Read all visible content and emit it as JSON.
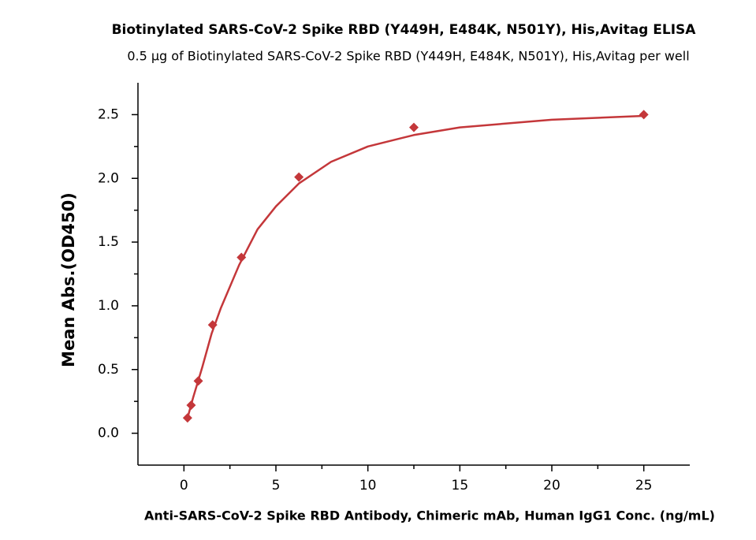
{
  "chart_data": {
    "type": "scatter",
    "title": "Biotinylated SARS-CoV-2 Spike RBD (Y449H, E484K, N501Y), His,Avitag ELISA",
    "subtitle": "0.5 μg of Biotinylated SARS-CoV-2 Spike RBD (Y449H, E484K, N501Y), His,Avitag per well",
    "x_label": "Anti-SARS-CoV-2 Spike RBD Antibody, Chimeric mAb, Human IgG1 Conc. (ng/mL)",
    "y_label": "Mean Abs.(OD450)",
    "x": [
      0.195,
      0.39,
      0.78,
      1.56,
      3.125,
      6.25,
      12.5,
      25
    ],
    "values": [
      0.12,
      0.22,
      0.41,
      0.85,
      1.38,
      2.01,
      2.4,
      2.5
    ],
    "color": "#c4373a",
    "curve": {
      "x": [
        0.195,
        0.5,
        1,
        1.5,
        2,
        3,
        4,
        5,
        6.25,
        8,
        10,
        12.5,
        15,
        20,
        25
      ],
      "values": [
        0.12,
        0.28,
        0.52,
        0.78,
        0.98,
        1.32,
        1.6,
        1.78,
        1.96,
        2.13,
        2.25,
        2.34,
        2.4,
        2.46,
        2.49
      ]
    },
    "xlim": [
      -2.5,
      27.5
    ],
    "xticks": [
      0,
      5,
      10,
      15,
      20,
      25
    ],
    "ylim": [
      -0.25,
      2.75
    ],
    "yticks": [
      {
        "value": 0,
        "label": "0.0"
      },
      0.5,
      {
        "value": 1,
        "label": "1.0"
      },
      1.5,
      {
        "value": 2,
        "label": "2.0"
      },
      2.5
    ],
    "grid": false
  }
}
